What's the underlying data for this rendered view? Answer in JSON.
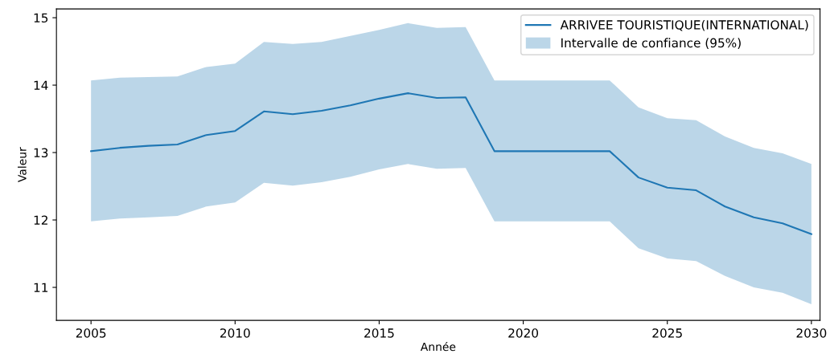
{
  "chart_data": {
    "type": "line",
    "xlabel": "Année",
    "ylabel": "Valeur",
    "annotations": [
      "Intervalle de confiance (95%)"
    ],
    "x": [
      2005,
      2006,
      2007,
      2008,
      2009,
      2010,
      2011,
      2012,
      2013,
      2014,
      2015,
      2016,
      2017,
      2018,
      2019,
      2020,
      2021,
      2022,
      2023,
      2024,
      2025,
      2026,
      2027,
      2028,
      2029,
      2030
    ],
    "series": [
      {
        "name": "ARRIVEE TOURISTIQUE(INTERNATIONAL)",
        "color": "#1f77b4",
        "values": [
          13.02,
          13.07,
          13.1,
          13.12,
          13.26,
          13.32,
          13.61,
          13.57,
          13.62,
          13.7,
          13.8,
          13.88,
          13.81,
          13.82,
          13.02,
          13.02,
          13.02,
          13.02,
          13.02,
          12.63,
          12.48,
          12.44,
          12.2,
          12.04,
          11.95,
          11.79
        ],
        "upper": [
          14.07,
          14.11,
          14.12,
          14.13,
          14.27,
          14.32,
          14.64,
          14.61,
          14.64,
          14.73,
          14.82,
          14.92,
          14.85,
          14.86,
          14.07,
          14.07,
          14.07,
          14.07,
          14.07,
          13.67,
          13.51,
          13.48,
          13.24,
          13.07,
          12.99,
          12.83
        ],
        "lower": [
          11.98,
          12.02,
          12.04,
          12.06,
          12.2,
          12.26,
          12.55,
          12.51,
          12.56,
          12.64,
          12.75,
          12.83,
          12.76,
          12.77,
          11.98,
          11.98,
          11.98,
          11.98,
          11.98,
          11.58,
          11.43,
          11.39,
          11.17,
          11.0,
          10.92,
          10.75
        ]
      }
    ],
    "xlim": [
      2003.8,
      2030.3
    ],
    "ylim": [
      10.51,
      15.13
    ],
    "xticks": [
      2005,
      2010,
      2015,
      2020,
      2025,
      2030
    ],
    "yticks": [
      11,
      12,
      13,
      14,
      15
    ],
    "grid": false,
    "legend": "top right",
    "marker": "none",
    "line_style": "solid"
  }
}
